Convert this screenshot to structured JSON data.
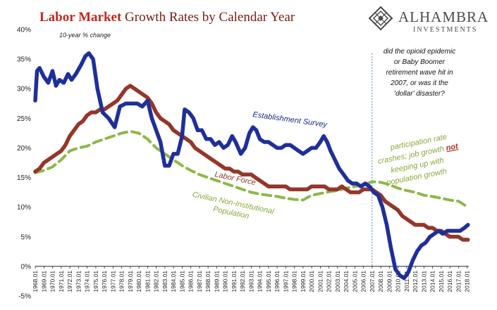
{
  "title_part1": "Labor Market",
  "title_part2": " Growth Rates by Calendar Year",
  "subtitle": "10-year % change",
  "logo": {
    "name": "ALHAMBRA",
    "sub": "INVESTMENTS",
    "icon": "diamond-lattice-icon"
  },
  "annotations": {
    "question": [
      "did the opioid epidemic",
      "or Baby Boomer",
      "retirement wave hit in",
      "2007, or was it the",
      "'dollar' disaster?"
    ],
    "participation_1": "participation rate",
    "participation_2_pre": "crashes; job growth ",
    "participation_2_emph": "not",
    "participation_3": "keeping up with",
    "participation_4": "population growth"
  },
  "colors": {
    "establishment": "#1f2f99",
    "labor_force": "#94362a",
    "population": "#8db848",
    "title_accent": "#c0281e"
  },
  "chart_data": {
    "type": "line",
    "ylim": [
      -5,
      40
    ],
    "yticks": [
      -5,
      0,
      5,
      10,
      15,
      20,
      25,
      30,
      35,
      40
    ],
    "ytick_labels": [
      "-5%",
      "0%",
      "5%",
      "10%",
      "15%",
      "20%",
      "25%",
      "30%",
      "35%",
      "40%"
    ],
    "xlim": [
      1968,
      2018.2
    ],
    "x_tick_labels": [
      "1968.01",
      "1969.01",
      "1970.01",
      "1971.01",
      "1972.01",
      "1973.01",
      "1974.01",
      "1975.01",
      "1976.01",
      "1977.01",
      "1978.01",
      "1979.01",
      "1980.01",
      "1981.01",
      "1982.01",
      "1983.01",
      "1984.01",
      "1985.01",
      "1986.01",
      "1987.01",
      "1988.01",
      "1989.01",
      "1990.01",
      "1991.01",
      "1992.01",
      "1993.01",
      "1994.01",
      "1995.01",
      "1996.01",
      "1997.01",
      "1998.01",
      "1999.01",
      "2000.01",
      "2001.01",
      "2002.01",
      "2003.01",
      "2004.01",
      "2005.01",
      "2006.01",
      "2007.01",
      "2008.01",
      "2009.01",
      "2010.01",
      "2011.01",
      "2012.01",
      "2013.01",
      "2014.01",
      "2015.01",
      "2016.01",
      "2017.01",
      "2018.01"
    ],
    "reference_line_x": 2007.0,
    "series": [
      {
        "name": "Establishment Survey",
        "x": [
          1968.0,
          1968.2,
          1968.5,
          1969.0,
          1969.5,
          1970.0,
          1970.4,
          1970.8,
          1971.3,
          1971.8,
          1972.2,
          1972.7,
          1973.3,
          1973.8,
          1974.2,
          1974.7,
          1975.2,
          1975.8,
          1976.5,
          1977.2,
          1977.8,
          1978.5,
          1979.2,
          1979.8,
          1980.4,
          1981.0,
          1981.5,
          1982.0,
          1982.5,
          1983.0,
          1983.5,
          1984.0,
          1984.5,
          1985.0,
          1985.3,
          1985.8,
          1986.3,
          1986.8,
          1987.3,
          1987.8,
          1988.3,
          1988.8,
          1989.3,
          1989.8,
          1990.3,
          1990.8,
          1991.2,
          1991.8,
          1992.3,
          1992.8,
          1993.2,
          1993.6,
          1994.0,
          1994.5,
          1995.0,
          1995.5,
          1996.0,
          1996.5,
          1997.0,
          1997.5,
          1998.0,
          1998.5,
          1999.0,
          1999.5,
          2000.0,
          2000.5,
          2001.0,
          2001.4,
          2001.8,
          2002.2,
          2002.7,
          2003.2,
          2003.7,
          2004.2,
          2004.7,
          2005.2,
          2005.7,
          2006.2,
          2006.7,
          2007.2,
          2007.7,
          2008.2,
          2008.7,
          2009.2,
          2009.7,
          2010.2,
          2010.7,
          2011.2,
          2011.7,
          2012.2,
          2012.7,
          2013.2,
          2013.7,
          2014.2,
          2014.7,
          2015.2,
          2015.7,
          2016.2,
          2016.7,
          2017.2,
          2017.7,
          2018.1
        ],
        "y": [
          28,
          33,
          33.5,
          32,
          31,
          33,
          30.5,
          31.5,
          31,
          32.5,
          31.5,
          32.5,
          34,
          35.5,
          36,
          35,
          30,
          26,
          25,
          23.5,
          27,
          27.5,
          27.5,
          27.5,
          27,
          28,
          25,
          23,
          21,
          17,
          17,
          19,
          19,
          22,
          26.5,
          26,
          25,
          23,
          23,
          21.5,
          21.5,
          20.5,
          21,
          20,
          20.5,
          22,
          21,
          19,
          20,
          22.5,
          23.5,
          23,
          21.5,
          21,
          21,
          20.5,
          20,
          20,
          20.5,
          20.5,
          20,
          19.5,
          19,
          19.5,
          20,
          20,
          21,
          22,
          21,
          19.5,
          18,
          16.5,
          15.5,
          14.5,
          14,
          14,
          13.5,
          14,
          13.5,
          12.5,
          12,
          10,
          7,
          3,
          -0.5,
          -1.5,
          -2,
          -1,
          1,
          2.5,
          3.5,
          4,
          5,
          5.5,
          6,
          5.5,
          6,
          6,
          6,
          6,
          6.5,
          7
        ]
      },
      {
        "name": "Labor Force",
        "x": [
          1968.0,
          1968.5,
          1969.0,
          1969.5,
          1970.0,
          1970.5,
          1971.0,
          1971.5,
          1972.0,
          1972.5,
          1973.0,
          1973.5,
          1974.0,
          1974.5,
          1975.0,
          1975.5,
          1976.0,
          1976.5,
          1977.0,
          1977.5,
          1978.0,
          1978.5,
          1979.0,
          1979.5,
          1980.0,
          1980.5,
          1981.0,
          1981.5,
          1982.0,
          1982.5,
          1983.0,
          1983.5,
          1984.0,
          1984.5,
          1985.0,
          1985.5,
          1986.0,
          1986.5,
          1987.0,
          1987.5,
          1988.0,
          1988.5,
          1989.0,
          1989.5,
          1990.0,
          1990.5,
          1991.0,
          1991.5,
          1992.0,
          1992.5,
          1993.0,
          1993.5,
          1994.0,
          1994.5,
          1995.0,
          1995.5,
          1996.0,
          1996.5,
          1997.0,
          1997.5,
          1998.0,
          1998.5,
          1999.0,
          1999.5,
          2000.0,
          2000.5,
          2001.0,
          2001.5,
          2002.0,
          2002.5,
          2003.0,
          2003.5,
          2004.0,
          2004.5,
          2005.0,
          2005.5,
          2006.0,
          2006.5,
          2007.0,
          2007.5,
          2008.0,
          2008.5,
          2009.0,
          2009.5,
          2010.0,
          2010.5,
          2011.0,
          2011.5,
          2012.0,
          2012.5,
          2013.0,
          2013.5,
          2014.0,
          2014.5,
          2015.0,
          2015.5,
          2016.0,
          2016.5,
          2017.0,
          2017.5,
          2018.1
        ],
        "y": [
          16,
          16.5,
          17.5,
          18,
          18.5,
          19,
          19.5,
          20.5,
          22,
          23,
          24,
          24.5,
          25.5,
          26,
          26,
          26.5,
          26.5,
          27,
          27.5,
          28,
          29,
          30,
          30.5,
          30,
          29.5,
          29,
          28.5,
          27.5,
          26,
          25,
          24.5,
          24,
          23,
          22.5,
          22,
          21.5,
          21,
          20,
          19.5,
          19,
          18.5,
          18,
          17.5,
          17,
          16.5,
          16.5,
          16,
          16,
          15.5,
          15.5,
          15.5,
          15,
          14.5,
          14,
          13.5,
          13.5,
          13.5,
          13.5,
          13.5,
          13,
          13,
          13,
          13,
          13,
          13.5,
          13.5,
          13.5,
          13.5,
          13,
          13,
          13,
          13.5,
          13,
          12.5,
          12.5,
          12.5,
          13,
          13,
          13,
          12.5,
          12,
          11,
          10.5,
          10,
          9.5,
          8.5,
          8,
          7.5,
          7,
          7,
          7,
          6.5,
          6.5,
          6,
          6,
          5.5,
          5,
          5,
          5,
          4.5,
          4.5
        ]
      },
      {
        "name": "Civilian Non-Institutional Population",
        "x": [
          1968.0,
          1969.0,
          1970.0,
          1971.0,
          1972.0,
          1973.0,
          1974.0,
          1975.0,
          1976.0,
          1977.0,
          1978.0,
          1979.0,
          1980.0,
          1981.0,
          1982.0,
          1983.0,
          1984.0,
          1985.0,
          1986.0,
          1987.0,
          1988.0,
          1989.0,
          1990.0,
          1991.0,
          1992.0,
          1993.0,
          1994.0,
          1995.0,
          1996.0,
          1997.0,
          1998.0,
          1999.0,
          2000.0,
          2001.0,
          2002.0,
          2003.0,
          2004.0,
          2005.0,
          2006.0,
          2007.0,
          2008.0,
          2009.0,
          2010.0,
          2011.0,
          2012.0,
          2013.0,
          2014.0,
          2015.0,
          2016.0,
          2017.0,
          2018.1
        ],
        "y": [
          15.8,
          16.2,
          16.8,
          18,
          19.5,
          20,
          20.3,
          21,
          21.5,
          22,
          22.5,
          22.8,
          22.5,
          21.5,
          20,
          19,
          18,
          17,
          16.2,
          15.5,
          15,
          14.5,
          14,
          13.5,
          13,
          12.5,
          12.2,
          12,
          11.8,
          11.5,
          11.3,
          11.2,
          12,
          12.3,
          12.6,
          12.8,
          13.2,
          13.5,
          13.8,
          14.3,
          14.2,
          13.8,
          13.2,
          12.8,
          12.5,
          12,
          11.8,
          11.5,
          11.2,
          11,
          10
        ]
      }
    ]
  }
}
